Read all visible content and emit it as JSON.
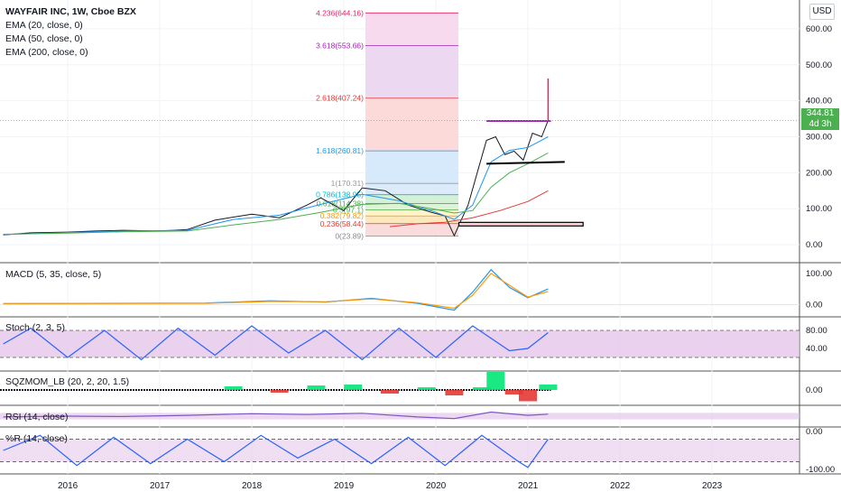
{
  "header": {
    "symbol_line": "WAYFAIR INC, 1W, Cboe BZX",
    "indicators": [
      "EMA (20, close, 0)",
      "EMA (50, close, 0)",
      "EMA (200, close, 0)"
    ],
    "currency_button": "USD"
  },
  "price_tag": {
    "price": "344.81",
    "countdown": "4d 3h"
  },
  "panels": {
    "macd": "MACD (5, 35, close, 5)",
    "stoch": "Stoch (2, 3, 5)",
    "sqzmom": "SQZMOM_LB (20, 2, 20, 1.5)",
    "rsi": "RSI (14, close)",
    "williams": "%R (14, close)"
  },
  "colors": {
    "up": "#26a69a",
    "down": "#ef5350",
    "ema20": "#2196f3",
    "ema50": "#4caf50",
    "ema200": "#e53935",
    "stoch_band": "#e1bee7",
    "rsi_line": "#7e57c2",
    "accent_green": "#4caf50",
    "purple_line": "#9c27b0"
  },
  "chart_data": [
    {
      "type": "line",
      "title": "WAYFAIR INC, 1W, Cboe BZX",
      "x_ticks": [
        "2016",
        "2017",
        "2018",
        "2019",
        "2020",
        "2021",
        "2022",
        "2023"
      ],
      "y_ticks": [
        "0.00",
        "100.00",
        "200.00",
        "300.00",
        "400.00",
        "500.00",
        "600.00"
      ],
      "ylim": [
        -30,
        660
      ],
      "series": [
        {
          "name": "Close",
          "x": [
            2015.3,
            2015.6,
            2016.0,
            2016.3,
            2016.6,
            2017.0,
            2017.3,
            2017.6,
            2018.0,
            2018.3,
            2018.6,
            2018.75,
            2019.0,
            2019.2,
            2019.45,
            2019.7,
            2019.95,
            2020.1,
            2020.2,
            2020.27,
            2020.35,
            2020.45,
            2020.55,
            2020.65,
            2020.75,
            2020.85,
            2020.95,
            2021.05,
            2021.15,
            2021.22
          ],
          "values": [
            27,
            33,
            35,
            38,
            40,
            38,
            42,
            68,
            85,
            75,
            110,
            130,
            95,
            158,
            150,
            110,
            90,
            80,
            25,
            65,
            110,
            200,
            290,
            300,
            250,
            260,
            235,
            310,
            300,
            345
          ]
        },
        {
          "name": "EMA (20, close, 0)",
          "x": [
            2015.3,
            2016.0,
            2016.6,
            2017.3,
            2017.8,
            2018.3,
            2018.75,
            2019.2,
            2019.6,
            2020.0,
            2020.2,
            2020.4,
            2020.6,
            2020.8,
            2021.0,
            2021.22
          ],
          "values": [
            28,
            34,
            38,
            40,
            70,
            82,
            112,
            140,
            122,
            90,
            70,
            110,
            230,
            262,
            270,
            300
          ]
        },
        {
          "name": "EMA (50, close, 0)",
          "x": [
            2015.3,
            2016.0,
            2016.6,
            2017.3,
            2017.8,
            2018.3,
            2018.75,
            2019.2,
            2019.6,
            2020.0,
            2020.2,
            2020.4,
            2020.6,
            2020.8,
            2021.0,
            2021.22
          ],
          "values": [
            29,
            32,
            36,
            38,
            55,
            70,
            90,
            112,
            115,
            98,
            88,
            95,
            160,
            200,
            225,
            255
          ]
        },
        {
          "name": "EMA (200, close, 0)",
          "x": [
            2019.5,
            2019.8,
            2020.1,
            2020.4,
            2020.7,
            2021.0,
            2021.22
          ],
          "values": [
            50,
            58,
            62,
            75,
            95,
            120,
            150
          ]
        }
      ],
      "fibonacci": [
        {
          "level": "0(23.89)",
          "value": 23.89
        },
        {
          "level": "0.236(58.44)",
          "value": 58.44
        },
        {
          "level": "0.382(79.82)",
          "value": 79.82
        },
        {
          "level": "0.5(97.1)",
          "value": 97.1
        },
        {
          "level": "0.618(114.38)",
          "value": 114.38
        },
        {
          "level": "0.786(138.95)",
          "value": 138.95
        },
        {
          "level": "1(170.31)",
          "value": 170.31
        },
        {
          "level": "1.618(260.81)",
          "value": 260.81
        },
        {
          "level": "2.618(407.24)",
          "value": 407.24
        },
        {
          "level": "3.618(553.66)",
          "value": 553.66
        },
        {
          "level": "4.236(644.16)",
          "value": 644.16
        }
      ]
    },
    {
      "type": "line",
      "title": "MACD (5, 35, close, 5)",
      "y_ticks": [
        "100.00",
        "0.00"
      ],
      "ylim": [
        -25,
        120
      ],
      "series": [
        {
          "name": "MACD",
          "x": [
            2015.3,
            2017.5,
            2018.2,
            2018.8,
            2019.3,
            2019.8,
            2020.2,
            2020.4,
            2020.6,
            2020.8,
            2021.0,
            2021.22
          ],
          "values": [
            3,
            5,
            12,
            8,
            20,
            4,
            -18,
            40,
            112,
            55,
            22,
            50
          ]
        },
        {
          "name": "Signal",
          "x": [
            2015.3,
            2017.5,
            2018.2,
            2018.8,
            2019.3,
            2019.8,
            2020.2,
            2020.4,
            2020.6,
            2020.8,
            2021.0,
            2021.22
          ],
          "values": [
            3,
            4,
            10,
            9,
            18,
            6,
            -12,
            30,
            100,
            62,
            24,
            42
          ]
        }
      ]
    },
    {
      "type": "line",
      "title": "Stoch (2, 3, 5)",
      "y_ticks": [
        "80.00",
        "40.00"
      ],
      "ylim": [
        0,
        100
      ],
      "series": [
        {
          "name": "%K",
          "x": [
            2015.3,
            2015.6,
            2016.0,
            2016.4,
            2016.8,
            2017.2,
            2017.6,
            2018.0,
            2018.4,
            2018.8,
            2019.2,
            2019.6,
            2020.0,
            2020.4,
            2020.8,
            2021.0,
            2021.22
          ],
          "values": [
            50,
            85,
            20,
            80,
            15,
            85,
            25,
            90,
            30,
            80,
            15,
            85,
            20,
            90,
            35,
            40,
            75
          ]
        }
      ]
    },
    {
      "type": "bar",
      "title": "SQZMOM_LB (20, 2, 20, 1.5)",
      "y_ticks": [
        "0.00"
      ],
      "x": [
        2017.8,
        2018.3,
        2018.7,
        2019.1,
        2019.5,
        2019.9,
        2020.2,
        2020.5,
        2020.65,
        2020.85,
        2021.0,
        2021.22
      ],
      "values": [
        8,
        -6,
        10,
        12,
        -8,
        6,
        -12,
        6,
        40,
        -10,
        -25,
        12
      ]
    },
    {
      "type": "line",
      "title": "RSI (14, close)",
      "ylim": [
        0,
        100
      ],
      "series": [
        {
          "name": "RSI",
          "x": [
            2015.3,
            2016.0,
            2016.6,
            2017.3,
            2018.0,
            2018.6,
            2019.2,
            2019.8,
            2020.2,
            2020.6,
            2021.0,
            2021.22
          ],
          "values": [
            45,
            50,
            48,
            55,
            65,
            60,
            68,
            45,
            35,
            75,
            55,
            62
          ]
        }
      ]
    },
    {
      "type": "line",
      "title": "%R (14, close)",
      "y_ticks": [
        "0.00",
        "-100.00"
      ],
      "ylim": [
        -105,
        5
      ],
      "series": [
        {
          "name": "%R",
          "x": [
            2015.3,
            2015.7,
            2016.1,
            2016.5,
            2016.9,
            2017.3,
            2017.7,
            2018.1,
            2018.5,
            2018.9,
            2019.3,
            2019.7,
            2020.1,
            2020.5,
            2020.9,
            2021.0,
            2021.22
          ],
          "values": [
            -50,
            -10,
            -90,
            -15,
            -85,
            -20,
            -80,
            -10,
            -70,
            -20,
            -85,
            -15,
            -90,
            -10,
            -80,
            -95,
            -20
          ]
        }
      ]
    }
  ]
}
